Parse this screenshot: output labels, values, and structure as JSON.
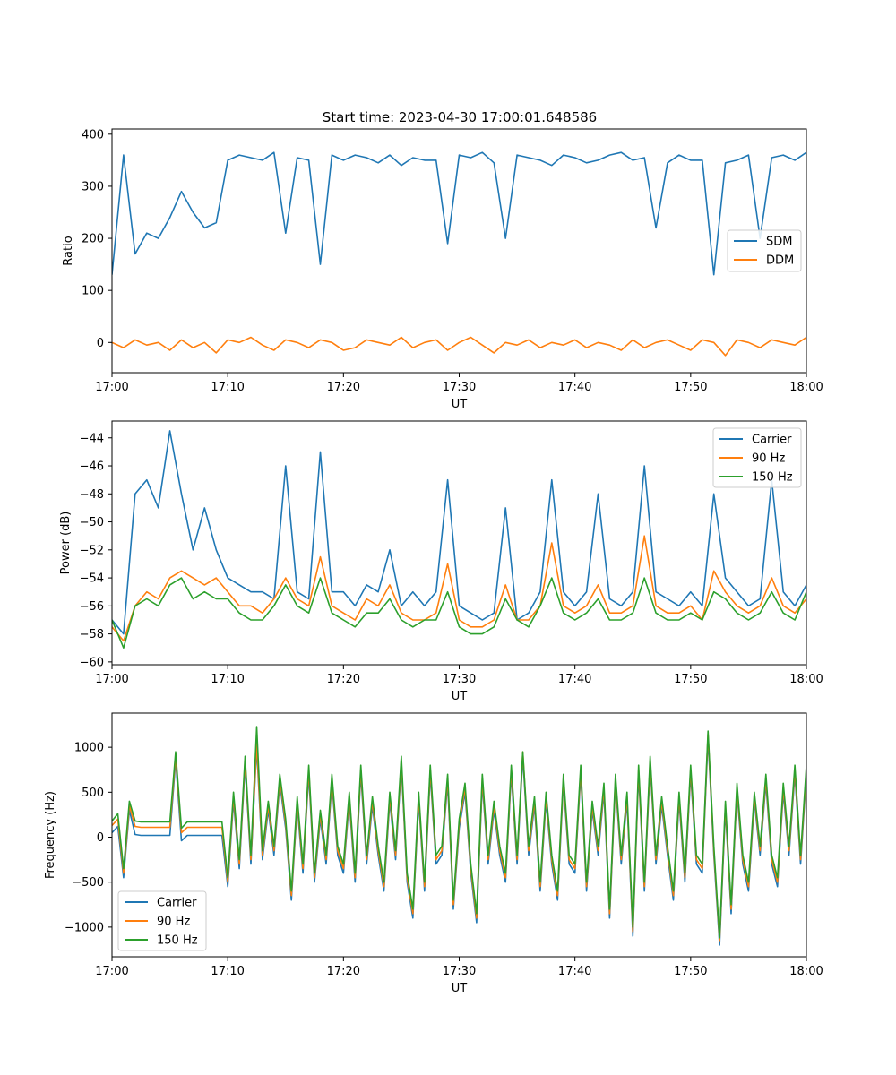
{
  "figure_title": "Start time: 2023-04-30 17:00:01.648586",
  "chart_data": [
    {
      "type": "line",
      "xlabel": "UT",
      "ylabel": "Ratio",
      "xticks": [
        "17:00",
        "17:10",
        "17:20",
        "17:30",
        "17:40",
        "17:50",
        "18:00"
      ],
      "xlim_minutes": [
        0,
        60
      ],
      "ylim": [
        -58,
        410
      ],
      "yticks": [
        0,
        100,
        200,
        300,
        400
      ],
      "ytick_labels": [
        "0",
        "100",
        "200",
        "300",
        "400"
      ],
      "legend_position": "center-right",
      "grid": false,
      "x_minutes": [
        0,
        1,
        2,
        3,
        4,
        5,
        6,
        7,
        8,
        9,
        10,
        11,
        12,
        13,
        14,
        15,
        16,
        17,
        18,
        19,
        20,
        21,
        22,
        23,
        24,
        25,
        26,
        27,
        28,
        29,
        30,
        31,
        32,
        33,
        34,
        35,
        36,
        37,
        38,
        39,
        40,
        41,
        42,
        43,
        44,
        45,
        46,
        47,
        48,
        49,
        50,
        51,
        52,
        53,
        54,
        55,
        56,
        57,
        58,
        59,
        60
      ],
      "series": [
        {
          "name": "SDM",
          "color": "#1f77b4",
          "values": [
            130,
            360,
            170,
            210,
            200,
            240,
            290,
            250,
            220,
            230,
            350,
            360,
            355,
            350,
            365,
            210,
            355,
            350,
            150,
            360,
            350,
            360,
            355,
            345,
            360,
            340,
            355,
            350,
            350,
            190,
            360,
            355,
            365,
            345,
            200,
            360,
            355,
            350,
            340,
            360,
            355,
            345,
            350,
            360,
            365,
            350,
            355,
            220,
            345,
            360,
            350,
            350,
            130,
            345,
            350,
            360,
            200,
            355,
            360,
            350,
            365
          ]
        },
        {
          "name": "DDM",
          "color": "#ff7f0e",
          "values": [
            0,
            -10,
            5,
            -5,
            0,
            -15,
            5,
            -10,
            0,
            -20,
            5,
            0,
            10,
            -5,
            -15,
            5,
            0,
            -10,
            5,
            0,
            -15,
            -10,
            5,
            0,
            -5,
            10,
            -10,
            0,
            5,
            -15,
            0,
            10,
            -5,
            -20,
            0,
            -5,
            5,
            -10,
            0,
            -5,
            5,
            -10,
            0,
            -5,
            -15,
            5,
            -10,
            0,
            5,
            -5,
            -15,
            5,
            0,
            -25,
            5,
            0,
            -10,
            5,
            0,
            -5,
            10
          ]
        }
      ]
    },
    {
      "type": "line",
      "xlabel": "UT",
      "ylabel": "Power (dB)",
      "xticks": [
        "17:00",
        "17:10",
        "17:20",
        "17:30",
        "17:40",
        "17:50",
        "18:00"
      ],
      "xlim_minutes": [
        0,
        60
      ],
      "ylim": [
        -60.2,
        -42.8
      ],
      "yticks": [
        -60,
        -58,
        -56,
        -54,
        -52,
        -50,
        -48,
        -46,
        -44
      ],
      "ytick_labels": [
        "−60",
        "−58",
        "−56",
        "−54",
        "−52",
        "−50",
        "−48",
        "−46",
        "−44"
      ],
      "legend_position": "top-right",
      "grid": false,
      "x_minutes": [
        0,
        1,
        2,
        3,
        4,
        5,
        6,
        7,
        8,
        9,
        10,
        11,
        12,
        13,
        14,
        15,
        16,
        17,
        18,
        19,
        20,
        21,
        22,
        23,
        24,
        25,
        26,
        27,
        28,
        29,
        30,
        31,
        32,
        33,
        34,
        35,
        36,
        37,
        38,
        39,
        40,
        41,
        42,
        43,
        44,
        45,
        46,
        47,
        48,
        49,
        50,
        51,
        52,
        53,
        54,
        55,
        56,
        57,
        58,
        59,
        60
      ],
      "series": [
        {
          "name": "Carrier",
          "color": "#1f77b4",
          "values": [
            -57,
            -58,
            -48,
            -47,
            -49,
            -43.5,
            -48,
            -52,
            -49,
            -52,
            -54,
            -54.5,
            -55,
            -55,
            -55.5,
            -46,
            -55,
            -55.5,
            -45,
            -55,
            -55,
            -56,
            -54.5,
            -55,
            -52,
            -56,
            -55,
            -56,
            -55,
            -47,
            -56,
            -56.5,
            -57,
            -56.5,
            -49,
            -57,
            -56.5,
            -55,
            -47,
            -55,
            -56,
            -55,
            -48,
            -55.5,
            -56,
            -55,
            -46,
            -55,
            -55.5,
            -56,
            -55,
            -56,
            -48,
            -54,
            -55,
            -56,
            -55.5,
            -47,
            -55,
            -56,
            -54.5
          ]
        },
        {
          "name": "90 Hz",
          "color": "#ff7f0e",
          "values": [
            -57.5,
            -58.5,
            -56,
            -55,
            -55.5,
            -54,
            -53.5,
            -54,
            -54.5,
            -54,
            -55,
            -56,
            -56,
            -56.5,
            -55.5,
            -54,
            -55.5,
            -56,
            -52.5,
            -56,
            -56.5,
            -57,
            -55.5,
            -56,
            -54.5,
            -56.5,
            -57,
            -57,
            -56.5,
            -53,
            -57,
            -57.5,
            -57.5,
            -57,
            -54.5,
            -57,
            -57,
            -56,
            -51.5,
            -56,
            -56.5,
            -56,
            -54.5,
            -56.5,
            -56.5,
            -56,
            -51,
            -56,
            -56.5,
            -56.5,
            -56,
            -57,
            -53.5,
            -55,
            -56,
            -56.5,
            -56,
            -54,
            -56,
            -56.5,
            -55.5
          ]
        },
        {
          "name": "150 Hz",
          "color": "#2ca02c",
          "values": [
            -57,
            -59,
            -56,
            -55.5,
            -56,
            -54.5,
            -54,
            -55.5,
            -55,
            -55.5,
            -55.5,
            -56.5,
            -57,
            -57,
            -56,
            -54.5,
            -56,
            -56.5,
            -54,
            -56.5,
            -57,
            -57.5,
            -56.5,
            -56.5,
            -55.5,
            -57,
            -57.5,
            -57,
            -57,
            -55,
            -57.5,
            -58,
            -58,
            -57.5,
            -55.5,
            -57,
            -57.5,
            -56,
            -54,
            -56.5,
            -57,
            -56.5,
            -55.5,
            -57,
            -57,
            -56.5,
            -54,
            -56.5,
            -57,
            -57,
            -56.5,
            -57,
            -55,
            -55.5,
            -56.5,
            -57,
            -56.5,
            -55,
            -56.5,
            -57,
            -55
          ]
        }
      ]
    },
    {
      "type": "line",
      "xlabel": "UT",
      "ylabel": "Frequency (Hz)",
      "xticks": [
        "17:00",
        "17:10",
        "17:20",
        "17:30",
        "17:40",
        "17:50",
        "18:00"
      ],
      "xlim_minutes": [
        0,
        60
      ],
      "ylim": [
        -1330,
        1380
      ],
      "yticks": [
        -1000,
        -500,
        0,
        500,
        1000
      ],
      "ytick_labels": [
        "−1000",
        "−500",
        "0",
        "500",
        "1000"
      ],
      "legend_position": "lower-left",
      "grid": false,
      "x_minutes": [
        0,
        0.5,
        1,
        1.5,
        2,
        2.5,
        3,
        3.5,
        4,
        4.5,
        5,
        5.5,
        6,
        6.5,
        7,
        7.5,
        8,
        8.5,
        9,
        9.5,
        10,
        10.5,
        11,
        11.5,
        12,
        12.5,
        13,
        13.5,
        14,
        14.5,
        15,
        15.5,
        16,
        16.5,
        17,
        17.5,
        18,
        18.5,
        19,
        19.5,
        20,
        20.5,
        21,
        21.5,
        22,
        22.5,
        23,
        23.5,
        24,
        24.5,
        25,
        25.5,
        26,
        26.5,
        27,
        27.5,
        28,
        28.5,
        29,
        29.5,
        30,
        30.5,
        31,
        31.5,
        32,
        32.5,
        33,
        33.5,
        34,
        34.5,
        35,
        35.5,
        36,
        36.5,
        37,
        37.5,
        38,
        38.5,
        39,
        39.5,
        40,
        40.5,
        41,
        41.5,
        42,
        42.5,
        43,
        43.5,
        44,
        44.5,
        45,
        45.5,
        46,
        46.5,
        47,
        47.5,
        48,
        48.5,
        49,
        49.5,
        50,
        50.5,
        51,
        51.5,
        52,
        52.5,
        53,
        53.5,
        54,
        54.5,
        55,
        55.5,
        56,
        56.5,
        57,
        57.5,
        58,
        58.5,
        59,
        59.5,
        60
      ],
      "series": [
        {
          "name": "Carrier",
          "color": "#1f77b4",
          "values": [
            50,
            120,
            -450,
            300,
            30,
            20,
            20,
            20,
            20,
            20,
            20,
            850,
            -40,
            20,
            20,
            20,
            20,
            20,
            20,
            20,
            -550,
            400,
            -350,
            800,
            -300,
            1000,
            -250,
            300,
            -200,
            600,
            100,
            -700,
            350,
            -400,
            700,
            -500,
            200,
            -300,
            600,
            -200,
            -400,
            400,
            -500,
            700,
            -300,
            350,
            -200,
            -600,
            400,
            -250,
            800,
            -500,
            -900,
            400,
            -600,
            700,
            -300,
            -200,
            600,
            -800,
            100,
            500,
            -400,
            -950,
            600,
            -300,
            300,
            -200,
            -500,
            700,
            -300,
            900,
            -200,
            350,
            -600,
            400,
            -300,
            -700,
            600,
            -300,
            -400,
            700,
            -600,
            300,
            -200,
            500,
            -900,
            600,
            -300,
            400,
            -1100,
            700,
            -600,
            800,
            -300,
            350,
            -200,
            -700,
            400,
            -500,
            700,
            -300,
            -400,
            1100,
            -200,
            -1200,
            300,
            -850,
            500,
            -300,
            -600,
            400,
            -200,
            600,
            -300,
            -550,
            500,
            -200,
            700,
            -300,
            700
          ]
        },
        {
          "name": "90 Hz",
          "color": "#ff7f0e",
          "values": [
            130,
            200,
            -400,
            350,
            120,
            110,
            110,
            110,
            110,
            110,
            110,
            900,
            50,
            110,
            110,
            110,
            110,
            110,
            110,
            110,
            -500,
            450,
            -300,
            850,
            -250,
            1050,
            -200,
            350,
            -150,
            650,
            150,
            -650,
            400,
            -350,
            750,
            -450,
            250,
            -250,
            650,
            -150,
            -350,
            450,
            -450,
            750,
            -250,
            400,
            -150,
            -550,
            450,
            -200,
            850,
            -450,
            -850,
            450,
            -550,
            750,
            -250,
            -150,
            650,
            -750,
            150,
            550,
            -350,
            -900,
            650,
            -250,
            350,
            -150,
            -450,
            750,
            -250,
            950,
            -150,
            400,
            -550,
            450,
            -250,
            -650,
            650,
            -250,
            -350,
            750,
            -550,
            350,
            -150,
            550,
            -850,
            650,
            -250,
            450,
            -1050,
            750,
            -550,
            850,
            -250,
            400,
            -150,
            -650,
            450,
            -450,
            750,
            -250,
            -350,
            1150,
            -150,
            -1150,
            350,
            -800,
            550,
            -250,
            -550,
            450,
            -150,
            650,
            -250,
            -500,
            550,
            -150,
            750,
            -250,
            750
          ]
        },
        {
          "name": "150 Hz",
          "color": "#2ca02c",
          "values": [
            180,
            260,
            -350,
            400,
            180,
            170,
            170,
            170,
            170,
            170,
            170,
            950,
            100,
            170,
            170,
            170,
            170,
            170,
            170,
            170,
            -450,
            500,
            -250,
            900,
            -200,
            1230,
            -150,
            400,
            -100,
            700,
            200,
            -600,
            450,
            -300,
            800,
            -400,
            300,
            -200,
            700,
            -100,
            -300,
            500,
            -400,
            800,
            -200,
            450,
            -100,
            -500,
            500,
            -150,
            900,
            -400,
            -800,
            500,
            -500,
            800,
            -200,
            -100,
            700,
            -700,
            200,
            600,
            -300,
            -850,
            700,
            -200,
            400,
            -100,
            -400,
            800,
            -200,
            950,
            -100,
            450,
            -500,
            500,
            -200,
            -600,
            700,
            -200,
            -300,
            800,
            -500,
            400,
            -100,
            600,
            -800,
            700,
            -200,
            500,
            -1000,
            800,
            -500,
            900,
            -200,
            450,
            -100,
            -600,
            500,
            -400,
            800,
            -200,
            -300,
            1180,
            -100,
            -1120,
            400,
            -750,
            600,
            -200,
            -500,
            500,
            -100,
            700,
            -200,
            -450,
            600,
            -100,
            800,
            -200,
            800
          ]
        }
      ]
    }
  ]
}
